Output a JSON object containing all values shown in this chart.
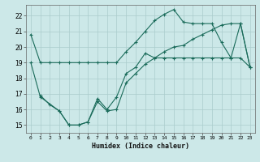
{
  "xlabel": "Humidex (Indice chaleur)",
  "bg_color": "#cce8e8",
  "grid_color": "#aacccc",
  "line_color": "#1a6b5a",
  "xlim": [
    -0.5,
    23.5
  ],
  "ylim": [
    14.5,
    22.7
  ],
  "xticks": [
    0,
    1,
    2,
    3,
    4,
    5,
    6,
    7,
    8,
    9,
    10,
    11,
    12,
    13,
    14,
    15,
    16,
    17,
    18,
    19,
    20,
    21,
    22,
    23
  ],
  "yticks": [
    15,
    16,
    17,
    18,
    19,
    20,
    21,
    22
  ],
  "line1_x": [
    0,
    1,
    2,
    3,
    4,
    5,
    6,
    7,
    8,
    9,
    10,
    11,
    12,
    13,
    14,
    15,
    16,
    17,
    18,
    19,
    20,
    21,
    22,
    23
  ],
  "line1_y": [
    20.8,
    19.0,
    19.0,
    19.0,
    19.0,
    19.0,
    19.0,
    19.0,
    19.0,
    19.0,
    19.7,
    20.3,
    21.0,
    21.7,
    22.1,
    22.4,
    21.6,
    21.5,
    21.5,
    21.5,
    20.3,
    19.3,
    21.5,
    18.7
  ],
  "line2_x": [
    0,
    1,
    3,
    4,
    5,
    6,
    7,
    8,
    9,
    10,
    11,
    12,
    13,
    14,
    15,
    16,
    17,
    18,
    19,
    20,
    21,
    22,
    23
  ],
  "line2_y": [
    19.0,
    16.8,
    15.9,
    15.0,
    15.0,
    15.2,
    16.5,
    15.9,
    16.0,
    17.7,
    18.3,
    18.9,
    19.3,
    19.7,
    20.0,
    20.1,
    20.5,
    20.8,
    21.1,
    21.4,
    21.5,
    21.5,
    18.7
  ],
  "line3_x": [
    1,
    2,
    3,
    4,
    5,
    6,
    7,
    8,
    9,
    10,
    11,
    12,
    13,
    14,
    15,
    16,
    17,
    18,
    19,
    20,
    21,
    22,
    23
  ],
  "line3_y": [
    16.9,
    16.3,
    15.9,
    15.0,
    15.0,
    15.2,
    16.7,
    16.0,
    16.8,
    18.3,
    18.7,
    19.6,
    19.3,
    19.3,
    19.3,
    19.3,
    19.3,
    19.3,
    19.3,
    19.3,
    19.3,
    19.3,
    18.7
  ]
}
